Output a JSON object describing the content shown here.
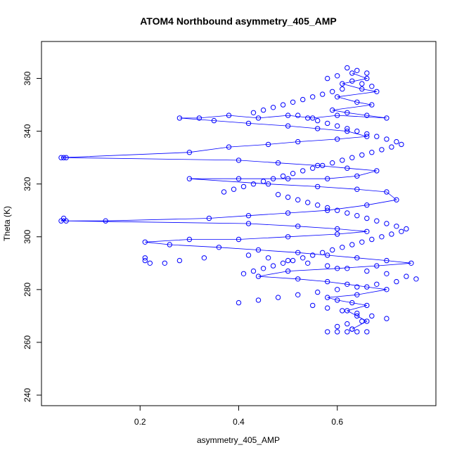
{
  "chart_data": {
    "type": "scatter",
    "title": "ATOM4 Northbound asymmetry_405_AMP",
    "xlabel": "asymmetry_405_AMP",
    "ylabel": "Theta (K)",
    "xlim": [
      0.0,
      0.8
    ],
    "ylim": [
      236,
      374
    ],
    "xticks": [
      0.2,
      0.4,
      0.6
    ],
    "xtick_labels": [
      "0.2",
      "0.4",
      "0.6"
    ],
    "yticks": [
      240,
      260,
      280,
      300,
      320,
      340,
      360
    ],
    "ytick_labels": [
      "240",
      "260",
      "280",
      "300",
      "320",
      "340",
      "360"
    ],
    "grid": false,
    "legend": "none",
    "color": "#0000ff",
    "series": [
      {
        "style": "line+points",
        "x": [
          0.63,
          0.66,
          0.61,
          0.65,
          0.68,
          0.6,
          0.64,
          0.67,
          0.59,
          0.62,
          0.66,
          0.7,
          0.6,
          0.55,
          0.5,
          0.44,
          0.38,
          0.32,
          0.28,
          0.35,
          0.42,
          0.5,
          0.56,
          0.62,
          0.66,
          0.6,
          0.52,
          0.46,
          0.38,
          0.3,
          0.04,
          0.045,
          0.05,
          0.4,
          0.48,
          0.56,
          0.62,
          0.68,
          0.64,
          0.58,
          0.5,
          0.4,
          0.3,
          0.46,
          0.56,
          0.64,
          0.7,
          0.72,
          0.66,
          0.58,
          0.5,
          0.42,
          0.34,
          0.13,
          0.04,
          0.045,
          0.05,
          0.42,
          0.52,
          0.6,
          0.66,
          0.6,
          0.5,
          0.4,
          0.3,
          0.21,
          0.26,
          0.36,
          0.44,
          0.52,
          0.58,
          0.64,
          0.7,
          0.75,
          0.68,
          0.6,
          0.5,
          0.44,
          0.52,
          0.58,
          0.62,
          0.66,
          0.7,
          0.64,
          0.58,
          0.6,
          0.63,
          0.66,
          0.62,
          0.64,
          0.66,
          0.63
        ],
        "y": [
          362,
          360,
          358,
          356,
          355,
          353,
          351,
          350,
          348,
          347,
          346,
          345,
          346,
          345,
          346,
          345,
          346,
          345,
          345,
          344,
          343,
          342,
          341,
          340,
          338,
          337,
          336,
          335,
          334,
          332,
          330,
          330,
          330,
          329,
          328,
          327,
          326,
          325,
          323,
          322,
          322,
          322,
          322,
          320,
          319,
          318,
          317,
          314,
          312,
          310,
          309,
          308,
          307,
          306,
          306,
          307,
          306,
          305,
          304,
          303,
          302,
          301,
          300,
          299,
          299,
          298,
          297,
          296,
          295,
          294,
          293,
          292,
          291,
          290,
          289,
          288,
          287,
          285,
          284,
          283,
          282,
          281,
          280,
          278,
          277,
          276,
          275,
          274,
          272,
          270,
          268,
          265
        ]
      },
      {
        "style": "points",
        "x": [
          0.62,
          0.64,
          0.66,
          0.6,
          0.58,
          0.63,
          0.65,
          0.67,
          0.61,
          0.59,
          0.57,
          0.55,
          0.53,
          0.51,
          0.49,
          0.47,
          0.45,
          0.43,
          0.52,
          0.54,
          0.56,
          0.58,
          0.6,
          0.62,
          0.64,
          0.66,
          0.68,
          0.7,
          0.72,
          0.73,
          0.71,
          0.69,
          0.67,
          0.65,
          0.63,
          0.61,
          0.59,
          0.57,
          0.55,
          0.53,
          0.51,
          0.49,
          0.47,
          0.45,
          0.43,
          0.41,
          0.39,
          0.37,
          0.48,
          0.5,
          0.52,
          0.54,
          0.56,
          0.58,
          0.6,
          0.62,
          0.64,
          0.66,
          0.68,
          0.7,
          0.72,
          0.74,
          0.73,
          0.71,
          0.69,
          0.67,
          0.65,
          0.63,
          0.61,
          0.59,
          0.57,
          0.55,
          0.53,
          0.51,
          0.49,
          0.47,
          0.45,
          0.43,
          0.41,
          0.21,
          0.21,
          0.22,
          0.25,
          0.28,
          0.33,
          0.42,
          0.46,
          0.5,
          0.54,
          0.58,
          0.62,
          0.66,
          0.7,
          0.74,
          0.76,
          0.72,
          0.68,
          0.64,
          0.6,
          0.56,
          0.52,
          0.48,
          0.44,
          0.4,
          0.55,
          0.58,
          0.61,
          0.64,
          0.67,
          0.7,
          0.65,
          0.62,
          0.6,
          0.63,
          0.66,
          0.64,
          0.62,
          0.6,
          0.58
        ],
        "y": [
          364,
          363,
          362,
          361,
          360,
          359,
          358,
          357,
          356,
          355,
          354,
          353,
          352,
          351,
          350,
          349,
          348,
          347,
          346,
          345,
          344,
          343,
          342,
          341,
          340,
          339,
          338,
          337,
          336,
          335,
          334,
          333,
          332,
          331,
          330,
          329,
          328,
          327,
          326,
          325,
          324,
          323,
          322,
          321,
          320,
          319,
          318,
          317,
          316,
          315,
          314,
          313,
          312,
          311,
          310,
          309,
          308,
          307,
          306,
          305,
          304,
          303,
          302,
          301,
          300,
          299,
          298,
          297,
          296,
          295,
          294,
          293,
          292,
          291,
          290,
          289,
          288,
          287,
          286,
          292,
          291,
          290,
          290,
          291,
          292,
          293,
          292,
          291,
          290,
          289,
          288,
          287,
          286,
          285,
          284,
          283,
          282,
          281,
          280,
          279,
          278,
          277,
          276,
          275,
          274,
          273,
          272,
          271,
          270,
          269,
          268,
          267,
          266,
          265,
          264,
          264,
          264,
          264,
          264
        ]
      }
    ]
  }
}
